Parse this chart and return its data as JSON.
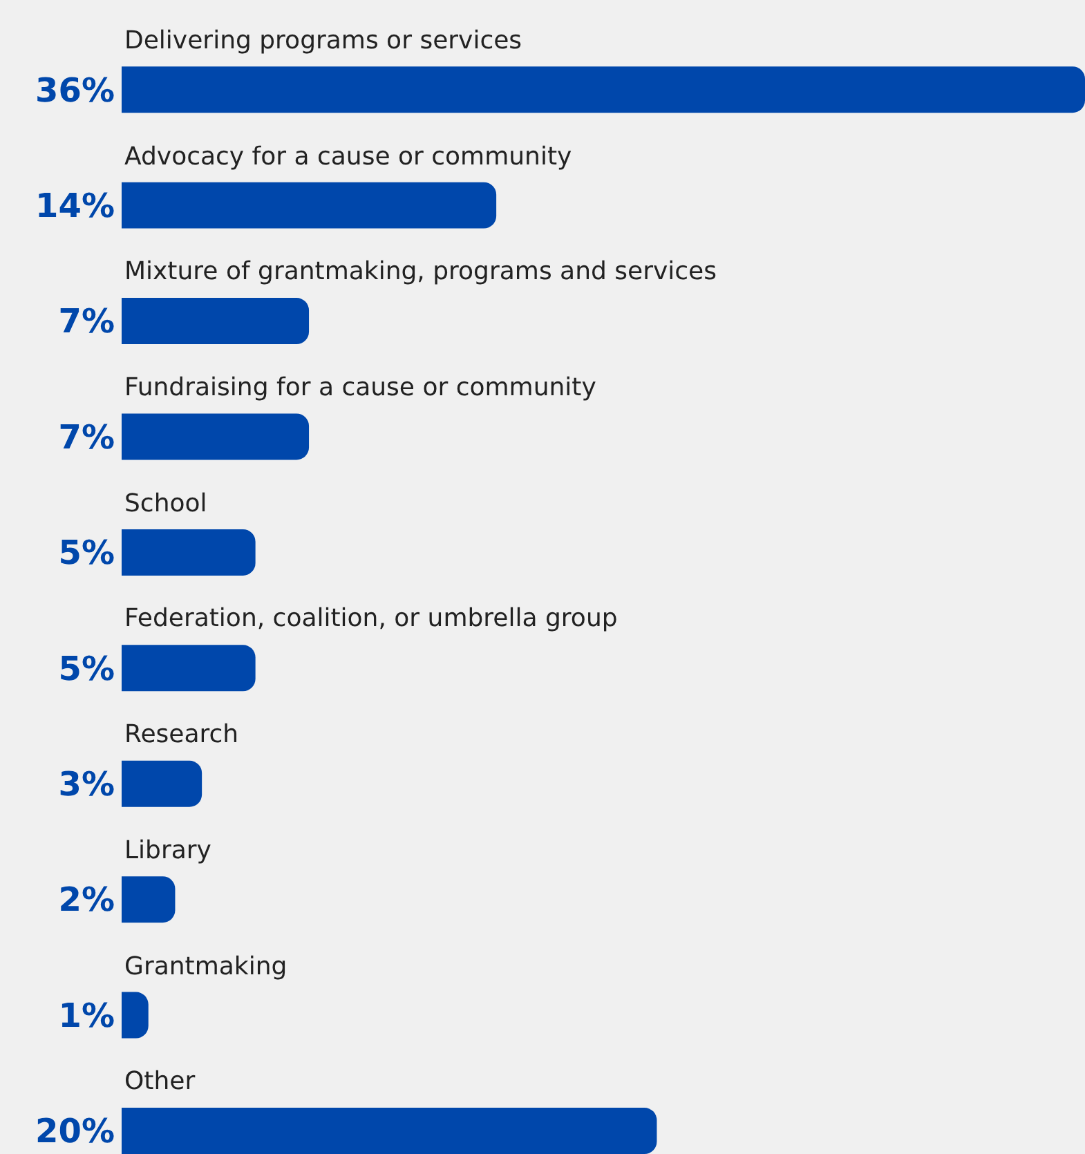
{
  "chart_data": {
    "type": "bar",
    "orientation": "horizontal",
    "categories": [
      "Delivering programs or services",
      "Advocacy for a cause or community",
      "Mixture of grantmaking, programs and services",
      "Fundraising for a cause or community",
      "School",
      "Federation, coalition, or umbrella group",
      "Research",
      "Library",
      "Grantmaking",
      "Other"
    ],
    "values": [
      36,
      14,
      7,
      7,
      5,
      5,
      3,
      2,
      1,
      20
    ],
    "value_labels": [
      "36%",
      "14%",
      "7%",
      "7%",
      "5%",
      "5%",
      "3%",
      "2%",
      "1%",
      "20%"
    ],
    "color": "#0047ab",
    "grid": false,
    "legend": false
  }
}
